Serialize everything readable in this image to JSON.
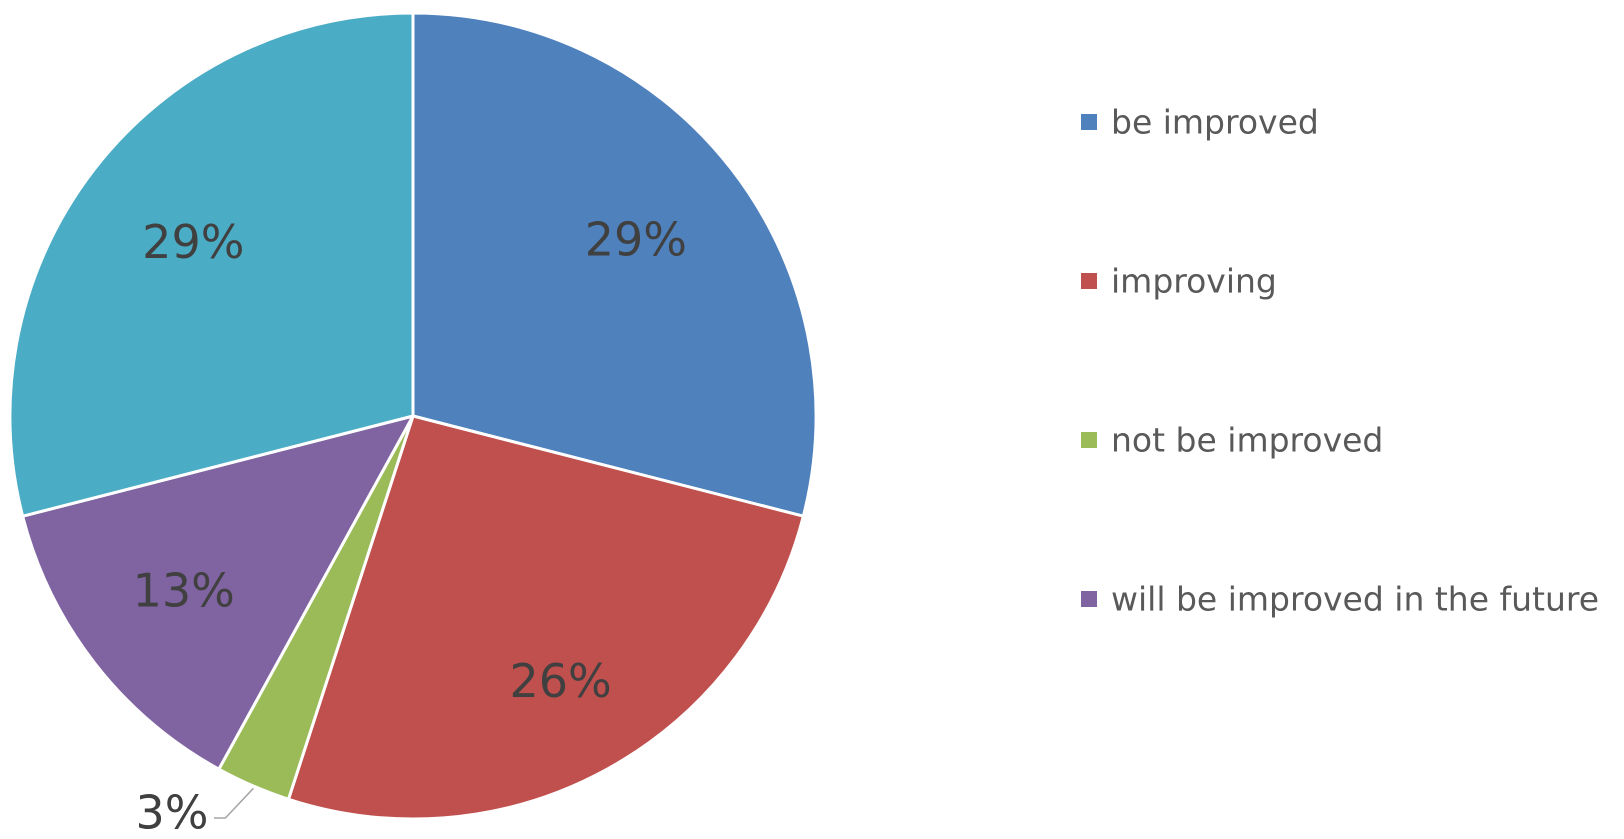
{
  "chart_data": {
    "type": "pie",
    "start_angle": "12 o'clock",
    "direction": "clockwise",
    "legend_position": "right",
    "slices": [
      {
        "name": "be improved",
        "value": 29,
        "label": "29%",
        "color": "#4f81bd"
      },
      {
        "name": "improving",
        "value": 26,
        "label": "26%",
        "color": "#c0504d"
      },
      {
        "name": "not be improved",
        "value": 3,
        "label": "3%",
        "color": "#9bbb59"
      },
      {
        "name": "will be improved in the future",
        "value": 13,
        "label": "13%",
        "color": "#8064a2"
      },
      {
        "name": "",
        "value": 29,
        "label": "29%",
        "color": "#4bacc6"
      }
    ]
  }
}
